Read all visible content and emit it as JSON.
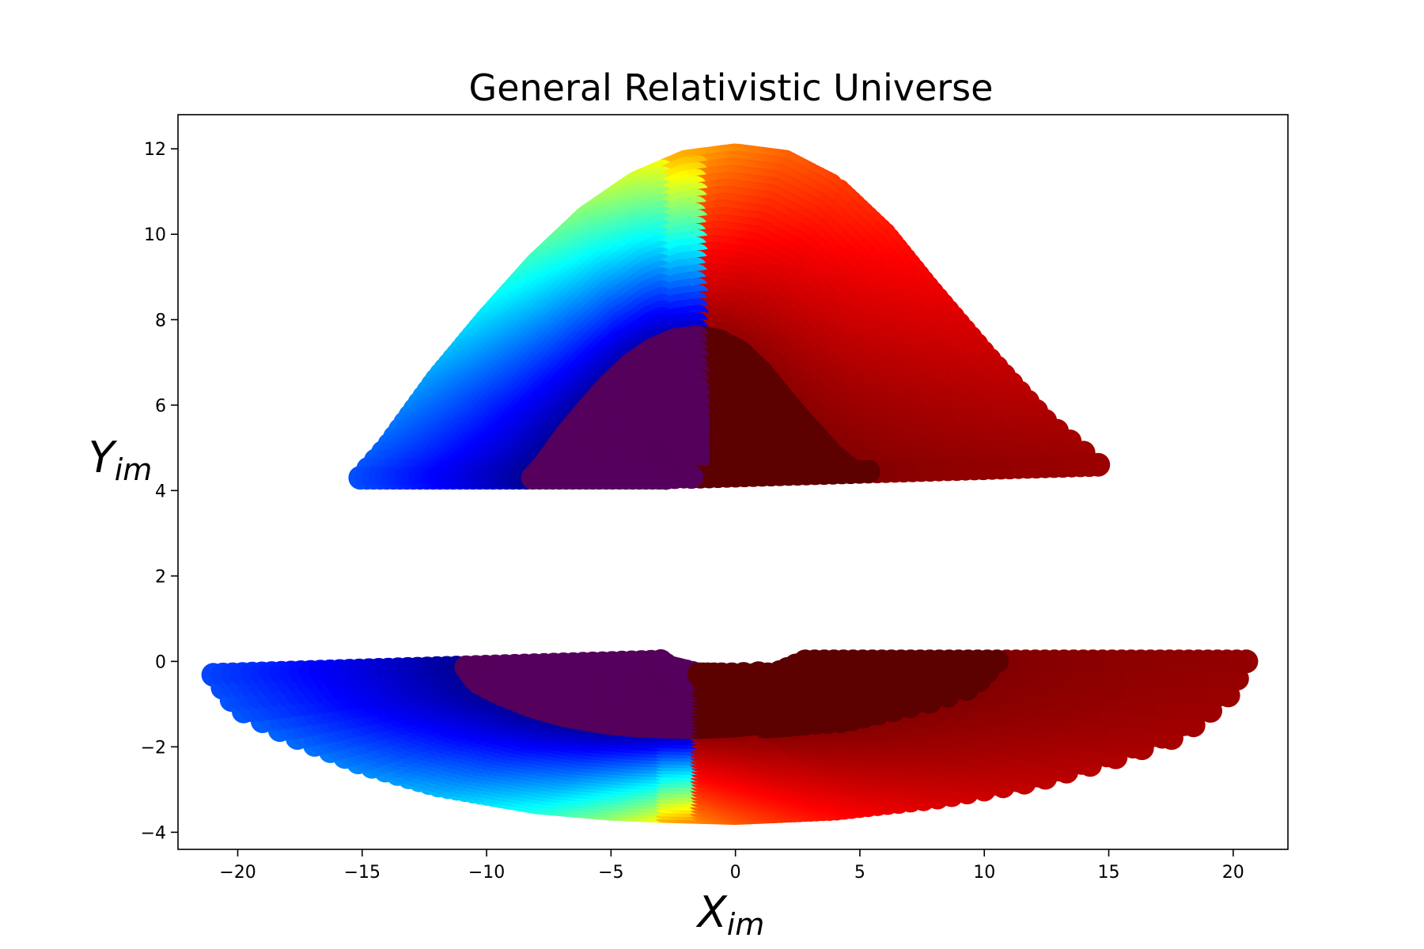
{
  "chart_data": {
    "type": "scatter",
    "title": "General Relativistic Universe",
    "xlabel": {
      "main": "X",
      "sub": "im"
    },
    "ylabel": {
      "main": "Y",
      "sub": "im"
    },
    "xlim": [
      -22.4,
      22.2
    ],
    "ylim": [
      -4.4,
      12.8
    ],
    "x_ticks": [
      -20,
      -15,
      -10,
      -5,
      0,
      5,
      10,
      15,
      20
    ],
    "x_tick_labels": [
      "−20",
      "−15",
      "−10",
      "−5",
      "0",
      "5",
      "10",
      "15",
      "20"
    ],
    "y_ticks": [
      -4,
      -2,
      0,
      2,
      4,
      6,
      8,
      10,
      12
    ],
    "y_tick_labels": [
      "−4",
      "−2",
      "0",
      "2",
      "4",
      "6",
      "8",
      "10",
      "12"
    ],
    "colormap": "jet",
    "grid": false,
    "legend": "none",
    "image_model": {
      "description": "Ray-traced disk image: rings parameterized by emission radius, colored by azimuth",
      "center_top": [
        -2.8,
        4.3
      ],
      "center_bottom": [
        -3.0,
        0.0
      ],
      "inner_boundary": [
        [
          -3.0,
          0.0
        ],
        [
          -2.6,
          -0.15
        ],
        [
          -1.5,
          -0.3
        ],
        [
          0.0,
          -0.3
        ],
        [
          1.8,
          -0.25
        ],
        [
          2.8,
          0.0
        ],
        [
          3.0,
          0.6
        ],
        [
          2.8,
          1.6
        ],
        [
          2.2,
          2.6
        ],
        [
          1.3,
          3.6
        ],
        [
          0.2,
          4.2
        ],
        [
          -1.0,
          4.35
        ],
        [
          -2.2,
          4.3
        ],
        [
          -3.0,
          4.0
        ],
        [
          -4.0,
          3.4
        ],
        [
          -5.0,
          2.4
        ],
        [
          -5.8,
          1.4
        ],
        [
          -5.5,
          0.5
        ],
        [
          -4.0,
          0.1
        ]
      ],
      "outer_boundary": [
        [
          -3.0,
          -3.5
        ],
        [
          0.0,
          -3.55
        ],
        [
          4.0,
          -3.45
        ],
        [
          8.0,
          -3.2
        ],
        [
          12.0,
          -2.8
        ],
        [
          15.0,
          -2.3
        ],
        [
          18.0,
          -1.7
        ],
        [
          19.8,
          -0.8
        ],
        [
          20.8,
          0.3
        ],
        [
          20.6,
          1.2
        ],
        [
          19.5,
          2.0
        ],
        [
          17.5,
          3.2
        ],
        [
          15.0,
          4.4
        ],
        [
          12.5,
          5.6
        ],
        [
          10.0,
          7.2
        ],
        [
          7.8,
          8.7
        ],
        [
          6.0,
          10.0
        ],
        [
          4.0,
          11.1
        ],
        [
          2.0,
          11.7
        ],
        [
          0.0,
          11.85
        ],
        [
          -2.0,
          11.7
        ],
        [
          -4.0,
          11.2
        ],
        [
          -6.0,
          10.4
        ],
        [
          -8.0,
          9.3
        ],
        [
          -10.0,
          8.0
        ],
        [
          -12.0,
          6.6
        ],
        [
          -14.0,
          5.0
        ],
        [
          -16.0,
          3.7
        ],
        [
          -18.0,
          2.7
        ],
        [
          -20.0,
          1.7
        ],
        [
          -21.0,
          0.7
        ],
        [
          -21.0,
          -0.3
        ],
        [
          -20.0,
          -1.1
        ],
        [
          -18.0,
          -1.7
        ],
        [
          -15.0,
          -2.4
        ],
        [
          -12.0,
          -2.9
        ],
        [
          -8.0,
          -3.3
        ],
        [
          -5.0,
          -3.45
        ]
      ],
      "inner_color": "#5c0000",
      "inner_color_left": "#55005c",
      "marker": "circle"
    }
  }
}
